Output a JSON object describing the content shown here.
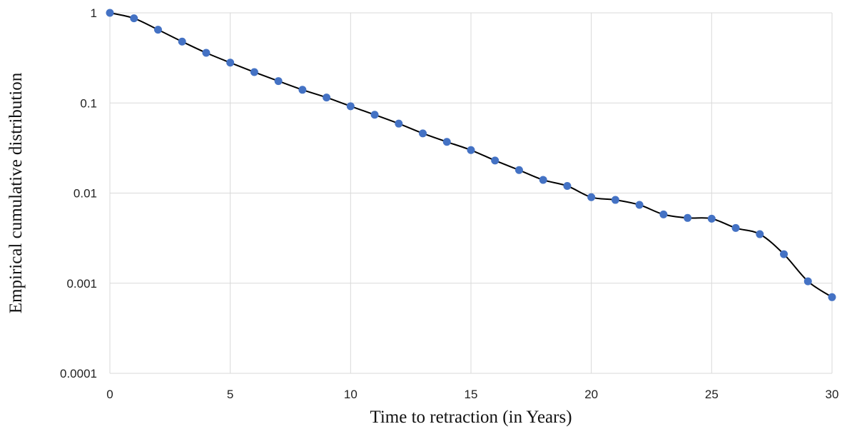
{
  "chart_data": {
    "type": "line",
    "xlabel": "Time to retraction (in Years)",
    "ylabel": "Empirical cumulative distribution",
    "xlim": [
      0,
      30
    ],
    "ylim": [
      0.0001,
      1
    ],
    "y_scale": "log",
    "grid": true,
    "x_ticks": [
      0,
      5,
      10,
      15,
      20,
      25,
      30
    ],
    "x_tick_labels": [
      "0",
      "5",
      "10",
      "15",
      "20",
      "25",
      "30"
    ],
    "y_ticks": [
      1,
      0.1,
      0.01,
      0.001,
      0.0001
    ],
    "y_tick_labels": [
      "1",
      "0.1",
      "0.01",
      "0.001",
      "0.0001"
    ],
    "line_color": "#000000",
    "marker_color": "#4472c4",
    "x": [
      0,
      1,
      2,
      3,
      4,
      5,
      6,
      7,
      8,
      9,
      10,
      11,
      12,
      13,
      14,
      15,
      16,
      17,
      18,
      19,
      20,
      21,
      22,
      23,
      24,
      25,
      26,
      27,
      28,
      29,
      30
    ],
    "y": [
      1,
      0.87,
      0.65,
      0.48,
      0.36,
      0.28,
      0.22,
      0.175,
      0.14,
      0.115,
      0.092,
      0.074,
      0.059,
      0.046,
      0.037,
      0.03,
      0.023,
      0.018,
      0.014,
      0.012,
      0.009,
      0.0084,
      0.0074,
      0.0058,
      0.0053,
      0.0052,
      0.0041,
      0.0035,
      0.0021,
      0.00105,
      0.0007
    ]
  }
}
